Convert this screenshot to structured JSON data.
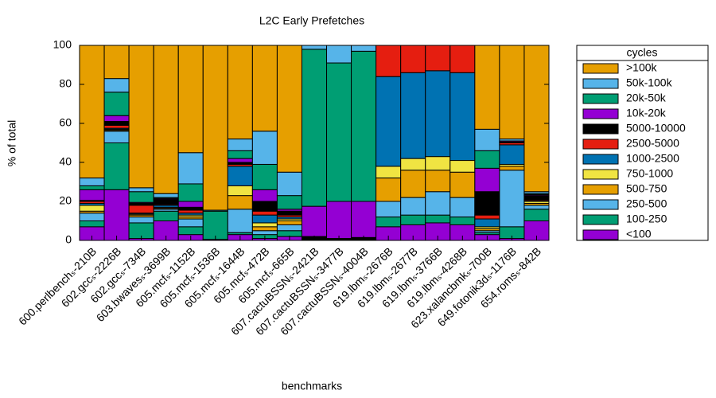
{
  "chart_data": {
    "type": "stacked_bar",
    "title": "L2C Early Prefetches",
    "x_label": "benchmarks",
    "y_label": "% of total",
    "legend_title": "cycles",
    "legend_position": "right-outside",
    "categories": [
      "600.perlbenchₛ-210B",
      "602.gccₛ-2226B",
      "602.gccₛ-734B",
      "603.bwavesₛ-3699B",
      "605.mcfₛ-1152B",
      "605.mcfₛ-1536B",
      "605.mcfₛ-1644B",
      "605.mcfₛ-472B",
      "605.mcfₛ-665B",
      "607.cactuBSSNₛ-2421B",
      "607.cactuBSSNₛ-3477B",
      "607.cactuBSSNₛ-4004B",
      "619.lbmₛ-2676B",
      "619.lbmₛ-2677B",
      "619.lbmₛ-3766B",
      "619.lbmₛ-4268B",
      "623.xalancbmkₛ-700B",
      "649.fotonik3dₛ-1176B",
      "654.romsₛ-842B"
    ],
    "series": [
      {
        "name": "<100",
        "color": "#9400d3",
        "values": [
          7,
          26,
          1,
          10,
          3,
          0.5,
          3,
          1,
          2,
          0,
          0,
          0,
          7,
          8,
          9,
          8,
          3,
          1,
          10
        ]
      },
      {
        "name": "100-250",
        "color": "#009e73",
        "values": [
          3,
          24,
          8,
          5,
          4,
          14.5,
          1,
          2,
          3,
          0,
          0,
          0,
          5,
          5,
          4,
          4,
          1,
          6,
          6
        ]
      },
      {
        "name": "250-500",
        "color": "#56b4e9",
        "values": [
          4,
          6,
          3,
          1,
          4,
          0.5,
          12,
          2,
          3,
          0,
          0,
          0,
          8,
          9,
          12,
          10,
          1,
          29,
          2
        ]
      },
      {
        "name": "500-750",
        "color": "#e69f00",
        "values": [
          1,
          0.5,
          1,
          0.5,
          1,
          0,
          7,
          2,
          2,
          0,
          0,
          0,
          12,
          14,
          11,
          13,
          1,
          2,
          1
        ]
      },
      {
        "name": "750-1000",
        "color": "#f0e442",
        "values": [
          3,
          0.5,
          0.5,
          0.5,
          1,
          0,
          5,
          2,
          1,
          0,
          0,
          0,
          6,
          6,
          7,
          6,
          1,
          1,
          1
        ]
      },
      {
        "name": "1000-2500",
        "color": "#0072b2",
        "values": [
          1,
          0.5,
          0.5,
          1,
          1,
          0,
          10,
          4,
          1,
          0,
          0,
          0,
          46,
          44,
          44,
          45,
          4,
          10,
          0.5
        ]
      },
      {
        "name": "2500-5000",
        "color": "#e51e10",
        "values": [
          1,
          1.5,
          4,
          0.5,
          1.5,
          0,
          1,
          2,
          1,
          0,
          0,
          0,
          16,
          14,
          13,
          14,
          2,
          1,
          0.5
        ]
      },
      {
        "name": "5000-10000",
        "color": "#000000",
        "values": [
          0.5,
          2,
          1,
          2.5,
          1.5,
          0,
          1,
          5,
          2,
          2,
          1,
          1.5,
          0,
          0,
          0,
          0,
          12,
          0.5,
          2
        ]
      },
      {
        "name": "10k-20k",
        "color": "#9400d3",
        "values": [
          5.5,
          3,
          0.5,
          0.5,
          3,
          0,
          2,
          6,
          1,
          15.5,
          19,
          18.5,
          0,
          0,
          0,
          0,
          12,
          0.5,
          0.5
        ]
      },
      {
        "name": "20k-50k",
        "color": "#009e73",
        "values": [
          2,
          12,
          5.5,
          0.5,
          9,
          0,
          4,
          13,
          7,
          80.5,
          71,
          77,
          0,
          0,
          0,
          0,
          9,
          0,
          0.5
        ]
      },
      {
        "name": "50k-100k",
        "color": "#56b4e9",
        "values": [
          4,
          7,
          2,
          2,
          16,
          0,
          6,
          17,
          12,
          2,
          9,
          3,
          0,
          0,
          0,
          0,
          11,
          1,
          1
        ]
      },
      {
        "name": ">100k",
        "color": "#e69f00",
        "values": [
          68,
          17,
          73,
          76,
          55,
          84.5,
          48,
          44,
          65,
          0,
          0,
          0,
          0,
          0,
          0,
          0,
          43,
          48,
          75
        ]
      }
    ],
    "ylim": [
      0,
      100
    ],
    "yticks": [
      0,
      20,
      40,
      60,
      80,
      100
    ],
    "grid": false
  }
}
